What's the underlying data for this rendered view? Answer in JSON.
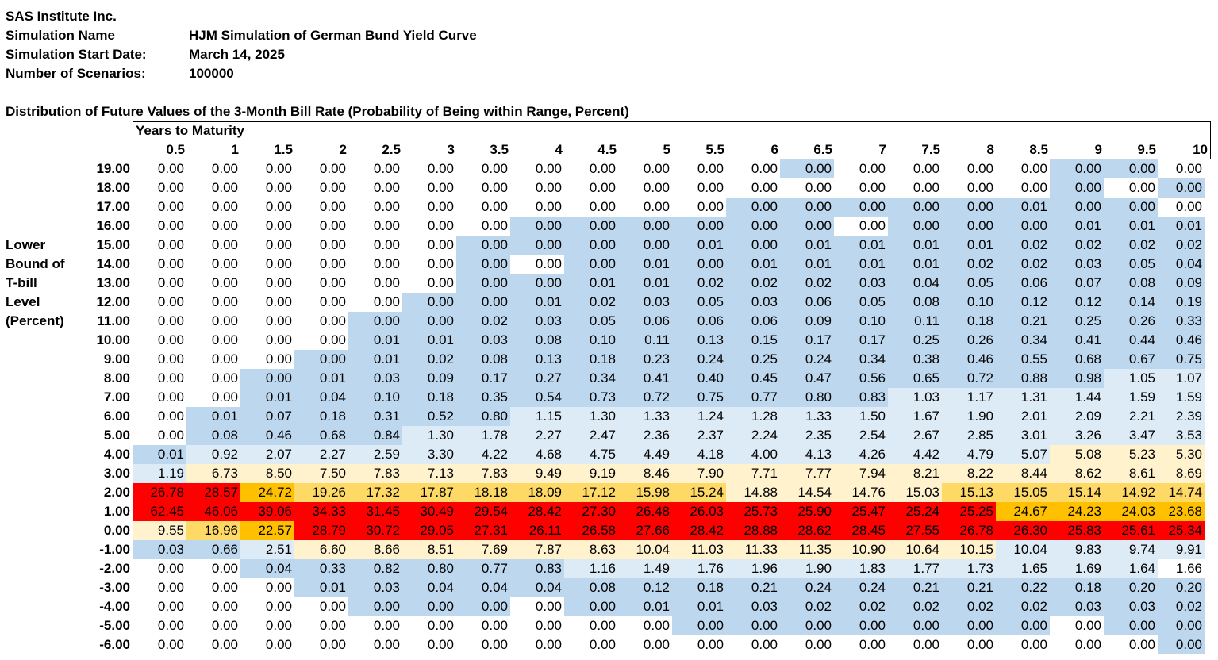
{
  "header": {
    "company": "SAS Institute Inc.",
    "simulation_name_label": "Simulation Name",
    "simulation_name": "HJM Simulation of German Bund Yield Curve",
    "start_date_label": "Simulation Start Date:",
    "start_date": "March 14, 2025",
    "scenarios_label": "Number of Scenarios:",
    "scenarios": "100000"
  },
  "table_title": "Distribution of Future Values of the 3-Month Bill Rate (Probability of Being within Range, Percent)",
  "column_group_label": "Years to Maturity",
  "row_axis_label": [
    "Lower",
    "Bound of",
    "T-bill",
    "Level",
    "(Percent)"
  ],
  "colors": {
    "white": "#ffffff",
    "blue": "#bdd7ee",
    "lightblue": "#ddebf7",
    "cream": "#fff2cc",
    "yellow": "#ffd966",
    "orange": "#ffc000",
    "red": "#ff0000"
  },
  "columns": [
    "0.5",
    "1",
    "1.5",
    "2",
    "2.5",
    "3",
    "3.5",
    "4",
    "4.5",
    "5",
    "5.5",
    "6",
    "6.5",
    "7",
    "7.5",
    "8",
    "8.5",
    "9",
    "9.5",
    "10"
  ],
  "rows": [
    {
      "label": "19.00",
      "values": [
        "0.00",
        "0.00",
        "0.00",
        "0.00",
        "0.00",
        "0.00",
        "0.00",
        "0.00",
        "0.00",
        "0.00",
        "0.00",
        "0.00",
        "0.00",
        "0.00",
        "0.00",
        "0.00",
        "0.00",
        "0.00",
        "0.00",
        "0.00"
      ],
      "fills": "wwwwwwwwwwwwbwwwwbbw"
    },
    {
      "label": "18.00",
      "values": [
        "0.00",
        "0.00",
        "0.00",
        "0.00",
        "0.00",
        "0.00",
        "0.00",
        "0.00",
        "0.00",
        "0.00",
        "0.00",
        "0.00",
        "0.00",
        "0.00",
        "0.00",
        "0.00",
        "0.00",
        "0.00",
        "0.00",
        "0.00"
      ],
      "fills": "wwwwwwwwwwwwwwwwwbwb"
    },
    {
      "label": "17.00",
      "values": [
        "0.00",
        "0.00",
        "0.00",
        "0.00",
        "0.00",
        "0.00",
        "0.00",
        "0.00",
        "0.00",
        "0.00",
        "0.00",
        "0.00",
        "0.00",
        "0.00",
        "0.00",
        "0.00",
        "0.01",
        "0.00",
        "0.00",
        "0.00"
      ],
      "fills": "wwwwwwwwwwwbbbbbbbbw"
    },
    {
      "label": "16.00",
      "values": [
        "0.00",
        "0.00",
        "0.00",
        "0.00",
        "0.00",
        "0.00",
        "0.00",
        "0.00",
        "0.00",
        "0.00",
        "0.00",
        "0.00",
        "0.00",
        "0.00",
        "0.00",
        "0.00",
        "0.00",
        "0.01",
        "0.01",
        "0.01"
      ],
      "fills": "wwwwwwwbbbbbbwbbbbbb"
    },
    {
      "label": "15.00",
      "values": [
        "0.00",
        "0.00",
        "0.00",
        "0.00",
        "0.00",
        "0.00",
        "0.00",
        "0.00",
        "0.00",
        "0.00",
        "0.01",
        "0.00",
        "0.01",
        "0.01",
        "0.01",
        "0.01",
        "0.02",
        "0.02",
        "0.02",
        "0.02"
      ],
      "fills": "wwwwwwbbbbbbbbbbbbbb"
    },
    {
      "label": "14.00",
      "values": [
        "0.00",
        "0.00",
        "0.00",
        "0.00",
        "0.00",
        "0.00",
        "0.00",
        "0.00",
        "0.00",
        "0.01",
        "0.00",
        "0.01",
        "0.01",
        "0.01",
        "0.01",
        "0.02",
        "0.02",
        "0.03",
        "0.05",
        "0.04"
      ],
      "fills": "wwwwwwbwbbbbbbbbbbbb"
    },
    {
      "label": "13.00",
      "values": [
        "0.00",
        "0.00",
        "0.00",
        "0.00",
        "0.00",
        "0.00",
        "0.00",
        "0.00",
        "0.01",
        "0.01",
        "0.02",
        "0.02",
        "0.02",
        "0.03",
        "0.04",
        "0.05",
        "0.06",
        "0.07",
        "0.08",
        "0.09"
      ],
      "fills": "wwwwwwbbbbbbbbbbbbbb"
    },
    {
      "label": "12.00",
      "values": [
        "0.00",
        "0.00",
        "0.00",
        "0.00",
        "0.00",
        "0.00",
        "0.00",
        "0.01",
        "0.02",
        "0.03",
        "0.05",
        "0.03",
        "0.06",
        "0.05",
        "0.08",
        "0.10",
        "0.12",
        "0.12",
        "0.14",
        "0.19"
      ],
      "fills": "wwwwwbbbbbbbbbbbbbbb"
    },
    {
      "label": "11.00",
      "values": [
        "0.00",
        "0.00",
        "0.00",
        "0.00",
        "0.00",
        "0.00",
        "0.02",
        "0.03",
        "0.05",
        "0.06",
        "0.06",
        "0.06",
        "0.09",
        "0.10",
        "0.11",
        "0.18",
        "0.21",
        "0.25",
        "0.26",
        "0.33"
      ],
      "fills": "wwwwbbbbbbbbbbbbbbbb"
    },
    {
      "label": "10.00",
      "values": [
        "0.00",
        "0.00",
        "0.00",
        "0.00",
        "0.01",
        "0.01",
        "0.03",
        "0.08",
        "0.10",
        "0.11",
        "0.13",
        "0.15",
        "0.17",
        "0.17",
        "0.25",
        "0.26",
        "0.34",
        "0.41",
        "0.44",
        "0.46"
      ],
      "fills": "wwwwbbbbbbbbbbbbbbbb"
    },
    {
      "label": "9.00",
      "values": [
        "0.00",
        "0.00",
        "0.00",
        "0.00",
        "0.01",
        "0.02",
        "0.08",
        "0.13",
        "0.18",
        "0.23",
        "0.24",
        "0.25",
        "0.24",
        "0.34",
        "0.38",
        "0.46",
        "0.55",
        "0.68",
        "0.67",
        "0.75"
      ],
      "fills": "wwwbbbbbbbbbbbbbbbbb"
    },
    {
      "label": "8.00",
      "values": [
        "0.00",
        "0.00",
        "0.00",
        "0.01",
        "0.03",
        "0.09",
        "0.17",
        "0.27",
        "0.34",
        "0.41",
        "0.40",
        "0.45",
        "0.47",
        "0.56",
        "0.65",
        "0.72",
        "0.88",
        "0.98",
        "1.05",
        "1.07"
      ],
      "fills": "wwbbbbbbbbbbbbbbbbll"
    },
    {
      "label": "7.00",
      "values": [
        "0.00",
        "0.00",
        "0.01",
        "0.04",
        "0.10",
        "0.18",
        "0.35",
        "0.54",
        "0.73",
        "0.72",
        "0.75",
        "0.77",
        "0.80",
        "0.83",
        "1.03",
        "1.17",
        "1.31",
        "1.44",
        "1.59",
        "1.59"
      ],
      "fills": "wwbbbbbbbbbbbbllllll"
    },
    {
      "label": "6.00",
      "values": [
        "0.00",
        "0.01",
        "0.07",
        "0.18",
        "0.31",
        "0.52",
        "0.80",
        "1.15",
        "1.30",
        "1.33",
        "1.24",
        "1.28",
        "1.33",
        "1.50",
        "1.67",
        "1.90",
        "2.01",
        "2.09",
        "2.21",
        "2.39"
      ],
      "fills": "wbbbbbbnllllllllllll"
    },
    {
      "label": "5.00",
      "values": [
        "0.00",
        "0.08",
        "0.46",
        "0.68",
        "0.84",
        "1.30",
        "1.78",
        "2.27",
        "2.47",
        "2.36",
        "2.37",
        "2.24",
        "2.35",
        "2.54",
        "2.67",
        "2.85",
        "3.01",
        "3.26",
        "3.47",
        "3.53"
      ],
      "fills": "wbbbblllllllllllllll"
    },
    {
      "label": "4.00",
      "values": [
        "0.01",
        "0.92",
        "2.07",
        "2.27",
        "2.59",
        "3.30",
        "4.22",
        "4.68",
        "4.75",
        "4.49",
        "4.18",
        "4.00",
        "4.13",
        "4.26",
        "4.42",
        "4.79",
        "5.07",
        "5.08",
        "5.23",
        "5.30"
      ],
      "fills": "bllllllllllllllllccccc"
    },
    {
      "label": "3.00",
      "values": [
        "1.19",
        "6.73",
        "8.50",
        "7.50",
        "7.83",
        "7.13",
        "7.83",
        "9.49",
        "9.19",
        "8.46",
        "7.90",
        "7.71",
        "7.77",
        "7.94",
        "8.21",
        "8.22",
        "8.44",
        "8.62",
        "8.61",
        "8.69"
      ],
      "fills": "lccccccccccccccccccc"
    },
    {
      "label": "2.00",
      "values": [
        "26.78",
        "28.57",
        "24.72",
        "19.26",
        "17.32",
        "17.87",
        "18.18",
        "18.09",
        "17.12",
        "15.98",
        "15.24",
        "14.88",
        "14.54",
        "14.76",
        "15.03",
        "15.13",
        "15.05",
        "15.14",
        "14.92",
        "14.74"
      ],
      "fills": "rroyyyyyyyyccccyyyyy"
    },
    {
      "label": "1.00",
      "values": [
        "62.45",
        "46.06",
        "39.06",
        "34.33",
        "31.45",
        "30.49",
        "29.54",
        "28.42",
        "27.30",
        "26.48",
        "26.03",
        "25.73",
        "25.90",
        "25.47",
        "25.24",
        "25.25",
        "24.67",
        "24.23",
        "24.03",
        "23.68"
      ],
      "fills": "rrrrrrrrrrrrrrrrooooo"
    },
    {
      "label": "0.00",
      "values": [
        "9.55",
        "16.96",
        "22.57",
        "28.79",
        "30.72",
        "29.05",
        "27.31",
        "26.11",
        "26.58",
        "27.66",
        "28.42",
        "28.88",
        "28.62",
        "28.45",
        "27.55",
        "26.78",
        "26.30",
        "25.83",
        "25.61",
        "25.34"
      ],
      "fills": "cyorrrrrrrrrrrrrrrrr"
    },
    {
      "label": "-1.00",
      "values": [
        "0.03",
        "0.66",
        "2.51",
        "6.60",
        "8.66",
        "8.51",
        "7.69",
        "7.87",
        "8.63",
        "10.04",
        "11.03",
        "11.33",
        "11.35",
        "10.90",
        "10.64",
        "10.15",
        "10.04",
        "9.83",
        "9.74",
        "9.91"
      ],
      "fills": "bblcccccccccccccllll"
    },
    {
      "label": "-2.00",
      "values": [
        "0.00",
        "0.00",
        "0.04",
        "0.33",
        "0.82",
        "0.80",
        "0.77",
        "0.83",
        "1.16",
        "1.49",
        "1.76",
        "1.96",
        "1.90",
        "1.83",
        "1.77",
        "1.73",
        "1.65",
        "1.69",
        "1.64",
        "1.66"
      ],
      "fills": "wwbbbbbblllllllllll"
    },
    {
      "label": "-3.00",
      "values": [
        "0.00",
        "0.00",
        "0.00",
        "0.01",
        "0.03",
        "0.04",
        "0.04",
        "0.04",
        "0.08",
        "0.12",
        "0.18",
        "0.21",
        "0.24",
        "0.24",
        "0.21",
        "0.21",
        "0.22",
        "0.18",
        "0.20",
        "0.20"
      ],
      "fills": "wwwbbbbbbbbbbbbbbbbb"
    },
    {
      "label": "-4.00",
      "values": [
        "0.00",
        "0.00",
        "0.00",
        "0.00",
        "0.00",
        "0.00",
        "0.00",
        "0.00",
        "0.00",
        "0.01",
        "0.01",
        "0.03",
        "0.02",
        "0.02",
        "0.02",
        "0.02",
        "0.02",
        "0.03",
        "0.03",
        "0.02"
      ],
      "fills": "wwwwbbbwbbbbbbbbbbbb"
    },
    {
      "label": "-5.00",
      "values": [
        "0.00",
        "0.00",
        "0.00",
        "0.00",
        "0.00",
        "0.00",
        "0.00",
        "0.00",
        "0.00",
        "0.00",
        "0.00",
        "0.00",
        "0.00",
        "0.00",
        "0.00",
        "0.00",
        "0.00",
        "0.00",
        "0.00",
        "0.00"
      ],
      "fills": "wwwwwwwwwwbbbbbbbwbb"
    },
    {
      "label": "-6.00",
      "values": [
        "0.00",
        "0.00",
        "0.00",
        "0.00",
        "0.00",
        "0.00",
        "0.00",
        "0.00",
        "0.00",
        "0.00",
        "0.00",
        "0.00",
        "0.00",
        "0.00",
        "0.00",
        "0.00",
        "0.00",
        "0.00",
        "0.00",
        "0.00"
      ],
      "fills": "wwwwwwwwwwwwwwwwwwwb"
    }
  ]
}
